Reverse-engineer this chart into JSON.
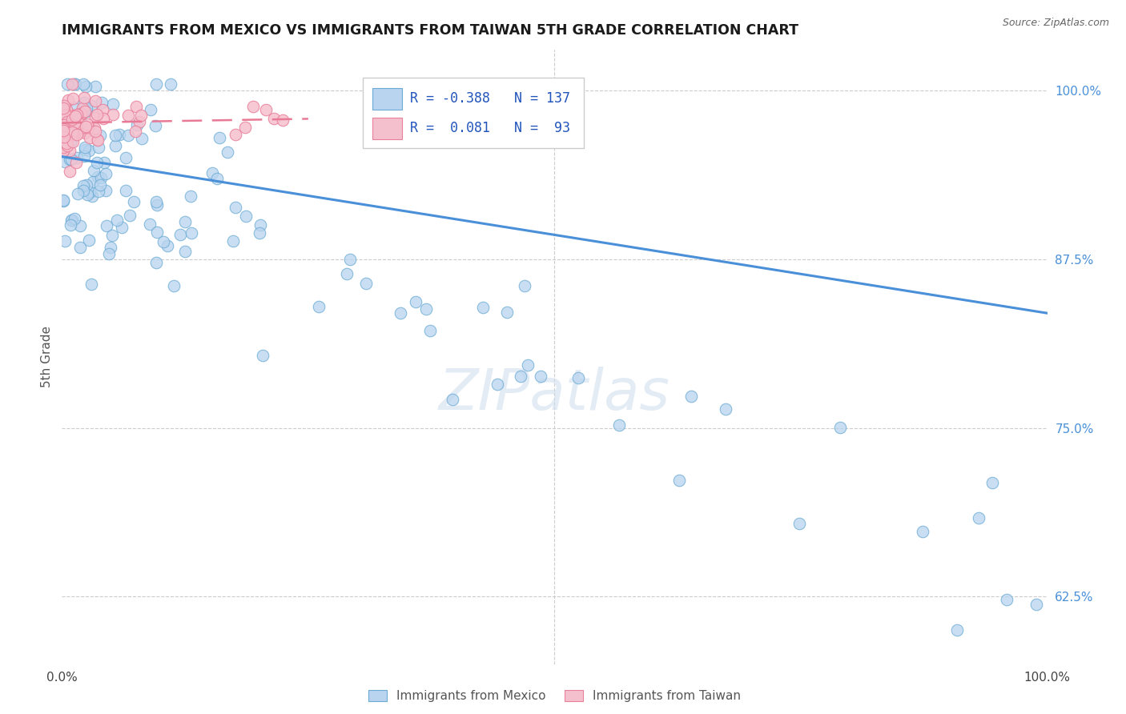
{
  "title": "IMMIGRANTS FROM MEXICO VS IMMIGRANTS FROM TAIWAN 5TH GRADE CORRELATION CHART",
  "source": "Source: ZipAtlas.com",
  "ylabel": "5th Grade",
  "blue_scatter_color": "#b8d4ee",
  "blue_scatter_edge": "#6aaad4",
  "pink_scatter_color": "#f5c0ce",
  "pink_scatter_edge": "#e8809a",
  "blue_line_color": "#4a90d9",
  "pink_line_color": "#e87a95",
  "background_color": "#ffffff",
  "grid_color": "#cccccc",
  "ytick_color": "#4a90d9",
  "legend_r1": "R = -0.388",
  "legend_n1": "N = 137",
  "legend_r2": "R =  0.081",
  "legend_n2": "N =  93",
  "watermark": "ZIPatlas",
  "bottom_label1": "Immigrants from Mexico",
  "bottom_label2": "Immigrants from Taiwan"
}
